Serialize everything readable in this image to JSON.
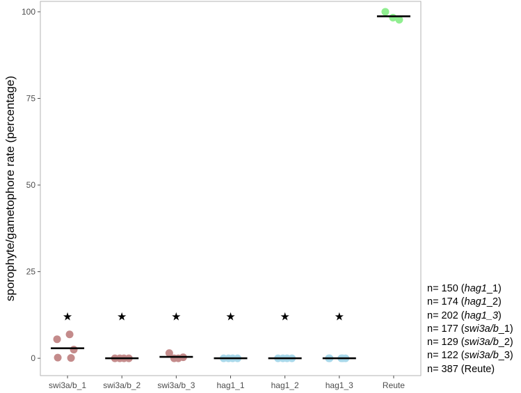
{
  "chart_data": {
    "type": "scatter",
    "ylabel": "sporophyte/gametophore rate (percentage)",
    "xlabel": "",
    "ylim": [
      -5,
      103
    ],
    "yticks": [
      0,
      25,
      50,
      75,
      100
    ],
    "grid": false,
    "categories": [
      "swi3a/b_1",
      "swi3a/b_2",
      "swi3a/b_3",
      "hag1_1",
      "hag1_2",
      "hag1_3",
      "Reute"
    ],
    "groups": [
      {
        "category": "swi3a/b_1",
        "color": "#c48b8b",
        "points": [
          5.5,
          6.9,
          2.5,
          0.2,
          0.1
        ],
        "mean": 2.9,
        "significant": true
      },
      {
        "category": "swi3a/b_2",
        "color": "#c48b8b",
        "points": [
          0,
          0,
          0,
          0
        ],
        "mean": 0,
        "significant": true
      },
      {
        "category": "swi3a/b_3",
        "color": "#c48b8b",
        "points": [
          1.5,
          0,
          0,
          0.3
        ],
        "mean": 0.4,
        "significant": true
      },
      {
        "category": "hag1_1",
        "color": "#a8d8ea",
        "points": [
          0,
          0,
          0,
          0
        ],
        "mean": 0,
        "significant": true
      },
      {
        "category": "hag1_2",
        "color": "#a8d8ea",
        "points": [
          0,
          0,
          0,
          0
        ],
        "mean": 0,
        "significant": true
      },
      {
        "category": "hag1_3",
        "color": "#a8d8ea",
        "points": [
          0,
          0,
          0,
          0,
          0
        ],
        "mean": 0,
        "significant": true
      },
      {
        "category": "Reute",
        "color": "#90ee90",
        "points": [
          100,
          98.3,
          97.7
        ],
        "mean": 98.7,
        "significant": false
      }
    ],
    "significance_marker": "★"
  },
  "legend": [
    {
      "prefix": "n= 150 (",
      "italic": "hag1",
      "suffix": "_1)"
    },
    {
      "prefix": "n= 174 (",
      "italic": "hag1",
      "suffix": "_2)"
    },
    {
      "prefix": "n= 202 (",
      "italic": "hag1_3",
      "suffix": ")"
    },
    {
      "prefix": "n= 177 (",
      "italic": "swi3a/b",
      "suffix": "_1)"
    },
    {
      "prefix": "n= 129 (",
      "italic": "swi3a/b",
      "suffix": "_2)"
    },
    {
      "prefix": "n= 122 (",
      "italic": "swi3a/b",
      "suffix": "_3)"
    },
    {
      "prefix": "n= 387 (Reute)",
      "italic": "",
      "suffix": ""
    }
  ]
}
